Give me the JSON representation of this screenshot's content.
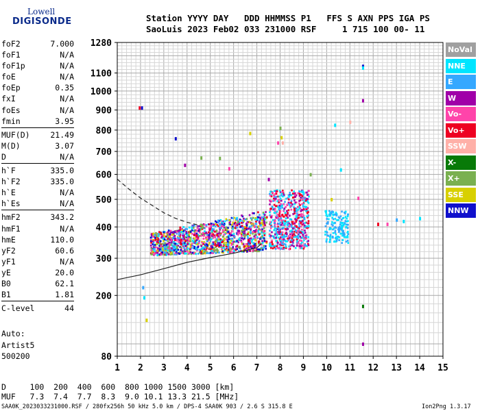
{
  "logo": {
    "line1": "Lowell",
    "line2": "DIGISONDE"
  },
  "header": {
    "labels": "Station YYYY DAY   DDD HHMMSS P1   FFS S AXN PPS IGA PS",
    "values": "SaoLuis 2023 Feb02 033 231000 RSF     1 715 100 00- 11"
  },
  "params": [
    {
      "name": "foF2",
      "value": "7.000"
    },
    {
      "name": "foF1",
      "value": "N/A"
    },
    {
      "name": "foF1p",
      "value": "N/A"
    },
    {
      "name": "foE",
      "value": "N/A"
    },
    {
      "name": "foEp",
      "value": "0.35"
    },
    {
      "name": "fxI",
      "value": "N/A"
    },
    {
      "name": "foEs",
      "value": "N/A"
    },
    {
      "name": "fmin",
      "value": "3.95"
    },
    {
      "name": "MUF(D)",
      "value": "21.49",
      "sep": true
    },
    {
      "name": "M(D)",
      "value": "3.07"
    },
    {
      "name": "D",
      "value": "N/A"
    },
    {
      "name": "h`F",
      "value": "335.0",
      "sep": true
    },
    {
      "name": "h`F2",
      "value": "335.0"
    },
    {
      "name": "h`E",
      "value": "N/A"
    },
    {
      "name": "h`Es",
      "value": "N/A"
    },
    {
      "name": "hmF2",
      "value": "343.2",
      "sep": true
    },
    {
      "name": "hmF1",
      "value": "N/A"
    },
    {
      "name": "hmE",
      "value": "110.0"
    },
    {
      "name": "yF2",
      "value": "60.6"
    },
    {
      "name": "yF1",
      "value": "N/A"
    },
    {
      "name": "yE",
      "value": "20.0"
    },
    {
      "name": "B0",
      "value": "62.1"
    },
    {
      "name": "B1",
      "value": "1.81"
    },
    {
      "name": "C-level",
      "value": "44",
      "sep": true
    }
  ],
  "auto": {
    "line1": "Auto:",
    "line2": "Artist5",
    "line3": "500200"
  },
  "legend": [
    {
      "label": "NoVal",
      "color": "#a0a0a0"
    },
    {
      "label": "NNE",
      "color": "#00e5ff"
    },
    {
      "label": "E",
      "color": "#35a8ff"
    },
    {
      "label": "W",
      "color": "#a000a8"
    },
    {
      "label": "Vo-",
      "color": "#ff44aa"
    },
    {
      "label": "Vo+",
      "color": "#ee0022"
    },
    {
      "label": "SSW",
      "color": "#ffb0a8"
    },
    {
      "label": "X-",
      "color": "#087a08"
    },
    {
      "label": "X+",
      "color": "#7ab050"
    },
    {
      "label": "SSE",
      "color": "#d8d000"
    },
    {
      "label": "NNW",
      "color": "#1010cc"
    }
  ],
  "bottom": {
    "d_row": "D     100  200  400  600  800 1000 1500 3000 [km]",
    "muf_row": "MUF   7.3  7.4  7.7  8.3  9.0 10.1 13.3 21.5 [MHz]"
  },
  "footer": {
    "left": "SAA0K_2023033231000.RSF / 280fx256h 50 kHz 5.0 km / DPS-4 SAA0K 903 / 2.6 S 315.8 E",
    "right": "Ion2Png 1.3.17"
  },
  "chart_data": {
    "type": "scatter",
    "title": "",
    "xlabel": "",
    "ylabel": "",
    "xlim": [
      1,
      15
    ],
    "ylim": [
      80,
      1280
    ],
    "xticks": [
      1,
      2,
      3,
      4,
      5,
      6,
      7,
      8,
      9,
      10,
      11,
      12,
      13,
      14,
      15
    ],
    "yticks": [
      80,
      200,
      300,
      400,
      500,
      600,
      700,
      800,
      900,
      1000,
      1100,
      1280
    ],
    "scale": "sqrt",
    "grid": true,
    "ionogram_clusters": [
      {
        "x": [
          2.4,
          7.4
        ],
        "y": [
          310,
          470
        ],
        "colors": [
          "W",
          "Vo+",
          "E",
          "NNE",
          "SSE",
          "X+",
          "NNW",
          "Vo-"
        ]
      },
      {
        "x": [
          7.5,
          9.2
        ],
        "y": [
          330,
          540
        ],
        "colors": [
          "Vo+",
          "E",
          "NNE",
          "W",
          "Vo-"
        ]
      },
      {
        "x": [
          9.9,
          10.9
        ],
        "y": [
          350,
          460
        ],
        "colors": [
          "E",
          "NNE"
        ]
      }
    ],
    "sparse_points": [
      {
        "x": 1.95,
        "y": 912,
        "c": "Vo+"
      },
      {
        "x": 2.05,
        "y": 912,
        "c": "NNW"
      },
      {
        "x": 2.1,
        "y": 220,
        "c": "E"
      },
      {
        "x": 2.15,
        "y": 195,
        "c": "NNE"
      },
      {
        "x": 2.25,
        "y": 145,
        "c": "SSE"
      },
      {
        "x": 3.5,
        "y": 760,
        "c": "NNW"
      },
      {
        "x": 3.9,
        "y": 640,
        "c": "W"
      },
      {
        "x": 4.6,
        "y": 672,
        "c": "X+"
      },
      {
        "x": 5.4,
        "y": 670,
        "c": "X+"
      },
      {
        "x": 5.8,
        "y": 625,
        "c": "Vo-"
      },
      {
        "x": 6.7,
        "y": 785,
        "c": "SSE"
      },
      {
        "x": 7.5,
        "y": 580,
        "c": "W"
      },
      {
        "x": 7.9,
        "y": 740,
        "c": "Vo-"
      },
      {
        "x": 8.1,
        "y": 740,
        "c": "SSW"
      },
      {
        "x": 8.05,
        "y": 765,
        "c": "SSE"
      },
      {
        "x": 8.0,
        "y": 810,
        "c": "X+"
      },
      {
        "x": 9.3,
        "y": 600,
        "c": "X+"
      },
      {
        "x": 10.2,
        "y": 500,
        "c": "SSE"
      },
      {
        "x": 10.35,
        "y": 825,
        "c": "NNE"
      },
      {
        "x": 10.6,
        "y": 620,
        "c": "NNE"
      },
      {
        "x": 11.0,
        "y": 840,
        "c": "SSW"
      },
      {
        "x": 11.35,
        "y": 505,
        "c": "Vo-"
      },
      {
        "x": 11.55,
        "y": 1140,
        "c": "NNW"
      },
      {
        "x": 11.55,
        "y": 1130,
        "c": "NNE"
      },
      {
        "x": 11.55,
        "y": 950,
        "c": "W"
      },
      {
        "x": 11.55,
        "y": 175,
        "c": "X-"
      },
      {
        "x": 11.55,
        "y": 100,
        "c": "W"
      },
      {
        "x": 12.2,
        "y": 410,
        "c": "Vo+"
      },
      {
        "x": 12.6,
        "y": 410,
        "c": "Vo-"
      },
      {
        "x": 13.0,
        "y": 425,
        "c": "E"
      },
      {
        "x": 13.3,
        "y": 420,
        "c": "NNE"
      },
      {
        "x": 14.0,
        "y": 430,
        "c": "NNE"
      }
    ],
    "series": [
      {
        "style": "solid",
        "x": [
          1.0,
          2.0,
          3.0,
          4.0,
          5.0,
          6.0,
          6.6,
          7.0,
          7.2
        ],
        "y": [
          240,
          253,
          270,
          288,
          302,
          315,
          325,
          332,
          345
        ]
      },
      {
        "style": "dashed",
        "x": [
          1.0,
          1.5,
          2.0,
          2.5,
          3.0,
          3.5,
          4.0,
          4.5
        ],
        "y": [
          580,
          540,
          505,
          477,
          450,
          430,
          416,
          406
        ]
      }
    ]
  }
}
